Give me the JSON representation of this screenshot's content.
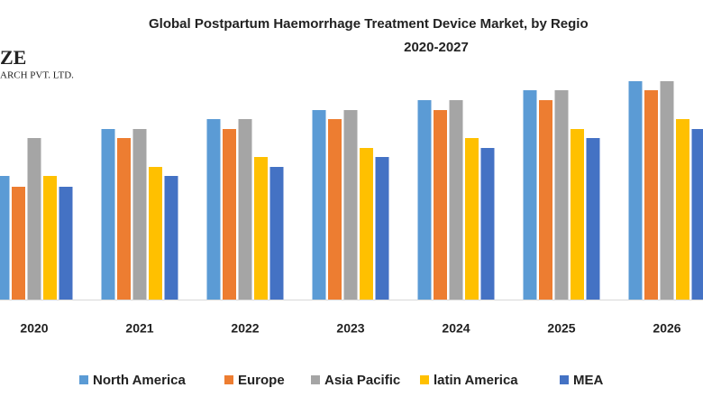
{
  "chart_data": {
    "type": "bar",
    "title_lines": [
      "Global Postpartum Haemorrhage Treatment Device Market, by Regio",
      "2020-2027"
    ],
    "logo": [
      "ZE",
      "ARCH PVT. LTD."
    ],
    "categories": [
      "2020",
      "2021",
      "2022",
      "2023",
      "2024",
      "2025",
      "2026"
    ],
    "series": [
      {
        "name": "North America",
        "color": "#5b9bd5",
        "values": [
          137,
          189,
          200,
          210,
          221,
          232,
          242
        ]
      },
      {
        "name": "Europe",
        "color": "#ed7d31",
        "values": [
          125,
          179,
          189,
          200,
          210,
          221,
          232
        ]
      },
      {
        "name": "Asia Pacific",
        "color": "#a5a5a5",
        "values": [
          179,
          189,
          200,
          210,
          221,
          232,
          242
        ]
      },
      {
        "name": "latin America",
        "color": "#ffc000",
        "values": [
          137,
          147,
          158,
          168,
          179,
          189,
          200
        ]
      },
      {
        "name": "MEA",
        "color": "#4472c4",
        "values": [
          125,
          137,
          147,
          158,
          168,
          179,
          189
        ]
      }
    ],
    "ylim": [
      0,
      250
    ]
  }
}
